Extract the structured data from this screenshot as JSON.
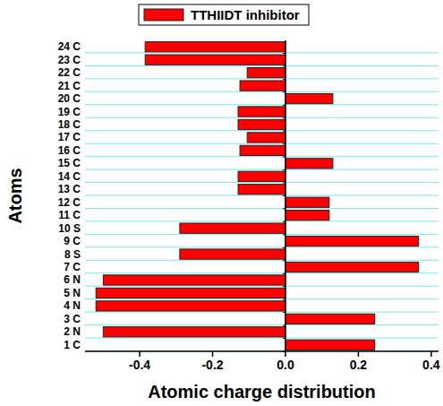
{
  "chart_data": {
    "type": "bar",
    "orientation": "horizontal",
    "categories": [
      "1 C",
      "2 N",
      "3 C",
      "4 N",
      "5 N",
      "6 N",
      "7 C",
      "8 S",
      "9 C",
      "10 S",
      "11 C",
      "12 C",
      "13 C",
      "14 C",
      "15 C",
      "16 C",
      "17 C",
      "18 C",
      "19 C",
      "20 C",
      "21 C",
      "22 C",
      "23 C",
      "24 C"
    ],
    "series": [
      {
        "name": "TTHIIDT inhibitor",
        "color": "#ff0000",
        "values": [
          0.245,
          -0.5,
          0.245,
          -0.52,
          -0.52,
          -0.5,
          0.365,
          -0.29,
          0.365,
          -0.29,
          0.12,
          0.12,
          -0.13,
          -0.13,
          0.13,
          -0.125,
          -0.105,
          -0.13,
          -0.13,
          0.13,
          -0.125,
          -0.105,
          -0.385,
          -0.385
        ]
      }
    ],
    "xlabel": "Atomic charge distribution",
    "ylabel": "Atoms",
    "xlim": [
      -0.55,
      0.42
    ],
    "xticks": [
      -0.4,
      -0.2,
      {
        "value": 0,
        "label": "0.0"
      },
      0.2,
      0.4
    ],
    "grid": true,
    "legend": "top"
  }
}
